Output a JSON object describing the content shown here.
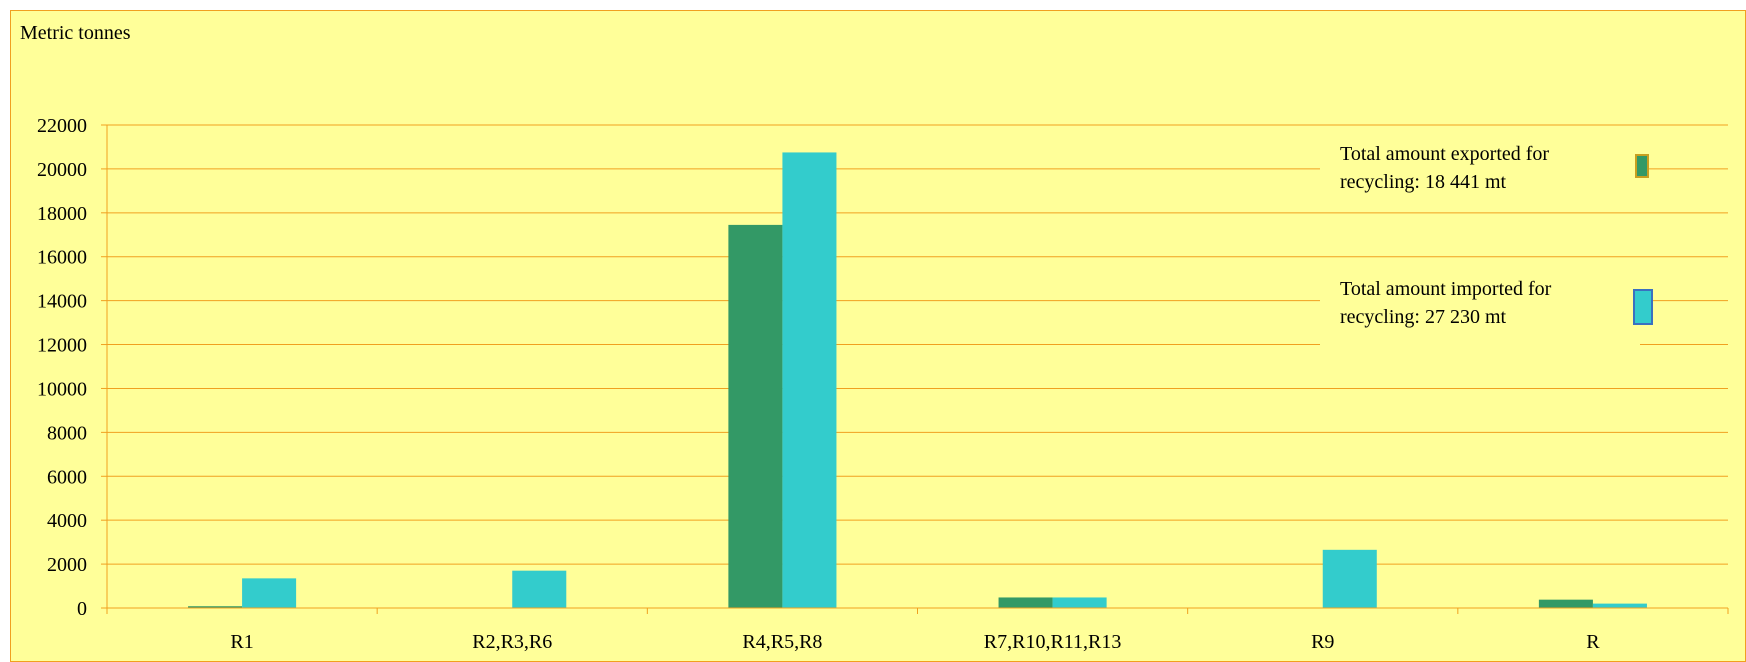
{
  "chart_data": {
    "type": "bar",
    "ylabel": "Metric tonnes",
    "categories": [
      "R1",
      "R2,R3,R6",
      "R4,R5,R8",
      "R7,R10,R11,R13",
      "R9",
      "R"
    ],
    "series": [
      {
        "values": [
          80,
          0,
          17450,
          480,
          0,
          380
        ],
        "color": "#339966"
      },
      {
        "values": [
          1350,
          1700,
          20750,
          480,
          2650,
          200
        ],
        "color": "#33cccc"
      }
    ],
    "ylim": [
      0,
      22000
    ],
    "yticks": [
      0,
      2000,
      4000,
      6000,
      8000,
      10000,
      12000,
      14000,
      16000,
      18000,
      20000,
      22000
    ],
    "grid": true,
    "legend_placement": "right",
    "annotations": [
      {
        "lines": [
          "Total amount exported for",
          "recycling: 18 441 mt"
        ],
        "icon": "exported-swatch-icon"
      },
      {
        "lines": [
          "Total amount imported for",
          "recycling: 27 230 mt"
        ],
        "icon": "imported-swatch-icon"
      }
    ],
    "colors": {
      "background": "#ffff99",
      "gridline": "#f0a020",
      "axis": "#f0a020"
    }
  }
}
